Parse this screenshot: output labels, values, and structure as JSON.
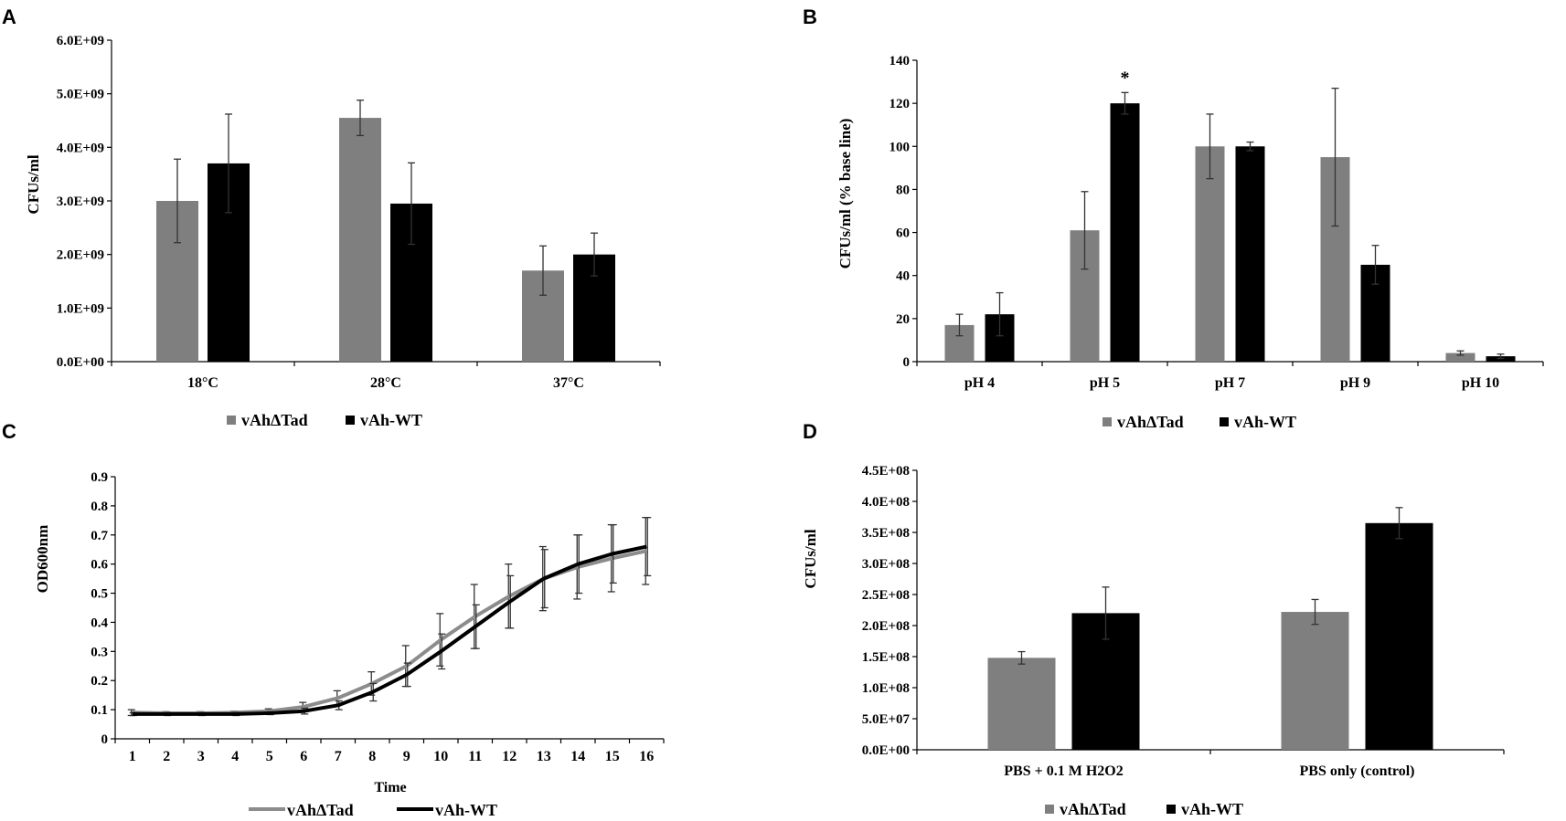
{
  "series_colors": {
    "mutant": "#7f7f7f",
    "wt": "#000000",
    "mutant_line": "#8c8c8c"
  },
  "chart_data": [
    {
      "panel": "A",
      "type": "bar",
      "title": "",
      "xlabel": "",
      "ylabel": "CFUs/ml",
      "ylim": [
        0,
        6000000000
      ],
      "yticks": [
        "0.0E+00",
        "1.0E+09",
        "2.0E+09",
        "3.0E+09",
        "4.0E+09",
        "5.0E+09",
        "6.0E+09"
      ],
      "categories": [
        "18°C",
        "28°C",
        "37°C"
      ],
      "series": [
        {
          "name": "vAhΔTad",
          "values": [
            3000000000.0,
            4550000000.0,
            1700000000.0
          ],
          "errors": [
            780000000.0,
            330000000.0,
            460000000.0
          ]
        },
        {
          "name": "vAh-WT",
          "values": [
            3700000000.0,
            2950000000.0,
            2000000000.0
          ],
          "errors": [
            920000000.0,
            760000000.0,
            400000000.0
          ]
        }
      ],
      "legend": [
        "vAhΔTad",
        "vAh-WT"
      ]
    },
    {
      "panel": "B",
      "type": "bar",
      "title": "",
      "xlabel": "",
      "ylabel": "CFUs/ml (% base line)",
      "ylim": [
        0,
        140
      ],
      "yticks": [
        "0",
        "20",
        "40",
        "60",
        "80",
        "100",
        "120",
        "140"
      ],
      "categories": [
        "pH 4",
        "pH 5",
        "pH 7",
        "pH 9",
        "pH 10"
      ],
      "series": [
        {
          "name": "vAhΔTad",
          "values": [
            17,
            61,
            100,
            95,
            4
          ],
          "errors": [
            5,
            18,
            15,
            32,
            1
          ]
        },
        {
          "name": "vAh-WT",
          "values": [
            22,
            120,
            100,
            45,
            2.5
          ],
          "errors": [
            10,
            5,
            2,
            9,
            1
          ]
        }
      ],
      "annotations": [
        {
          "category": "pH 5",
          "text": "*"
        }
      ],
      "legend": [
        "vAhΔTad",
        "vAh-WT"
      ]
    },
    {
      "panel": "C",
      "type": "line",
      "title": "",
      "xlabel": "Time",
      "ylabel": "OD600nm",
      "ylim": [
        0,
        0.9
      ],
      "yticks": [
        "0",
        "0.1",
        "0.2",
        "0.3",
        "0.4",
        "0.5",
        "0.6",
        "0.7",
        "0.8",
        "0.9"
      ],
      "x": [
        1,
        2,
        3,
        4,
        5,
        6,
        7,
        8,
        9,
        10,
        11,
        12,
        13,
        14,
        15,
        16
      ],
      "xticks": [
        "1",
        "2",
        "3",
        "4",
        "5",
        "6",
        "7",
        "8",
        "9",
        "10",
        "11",
        "12",
        "13",
        "14",
        "15",
        "16"
      ],
      "series": [
        {
          "name": "vAhΔTad",
          "values": [
            0.09,
            0.088,
            0.088,
            0.09,
            0.095,
            0.11,
            0.14,
            0.19,
            0.25,
            0.34,
            0.42,
            0.49,
            0.55,
            0.59,
            0.62,
            0.645
          ],
          "errors": [
            0.01,
            0.005,
            0.005,
            0.005,
            0.008,
            0.015,
            0.025,
            0.04,
            0.07,
            0.09,
            0.11,
            0.11,
            0.11,
            0.11,
            0.115,
            0.115
          ]
        },
        {
          "name": "vAh-WT",
          "values": [
            0.085,
            0.085,
            0.085,
            0.085,
            0.088,
            0.095,
            0.115,
            0.16,
            0.22,
            0.3,
            0.385,
            0.47,
            0.55,
            0.6,
            0.635,
            0.66
          ],
          "errors": [
            0.005,
            0.005,
            0.005,
            0.005,
            0.005,
            0.01,
            0.015,
            0.03,
            0.04,
            0.06,
            0.075,
            0.09,
            0.1,
            0.1,
            0.1,
            0.1
          ]
        }
      ],
      "legend": [
        "vAhΔTad",
        "vAh-WT"
      ]
    },
    {
      "panel": "D",
      "type": "bar",
      "title": "",
      "xlabel": "",
      "ylabel": "CFUs/ml",
      "ylim": [
        0,
        450000000
      ],
      "yticks": [
        "0.0E+00",
        "5.0E+07",
        "1.0E+08",
        "1.5E+08",
        "2.0E+08",
        "2.5E+08",
        "3.0E+08",
        "3.5E+08",
        "4.0E+08",
        "4.5E+08"
      ],
      "categories": [
        "PBS + 0.1 M H2O2",
        "PBS only (control)"
      ],
      "series": [
        {
          "name": "vAhΔTad",
          "values": [
            148000000.0,
            222000000.0
          ],
          "errors": [
            10000000.0,
            20000000.0
          ]
        },
        {
          "name": "vAh-WT",
          "values": [
            220000000.0,
            365000000.0
          ],
          "errors": [
            42000000.0,
            25000000.0
          ]
        }
      ],
      "legend": [
        "vAhΔTad",
        "vAh-WT"
      ]
    }
  ]
}
